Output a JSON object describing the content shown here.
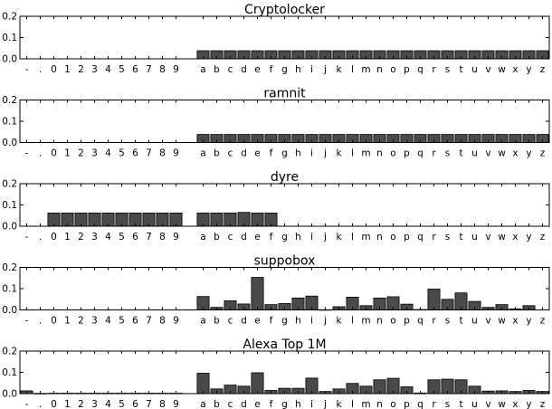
{
  "chart_data": {
    "type": "bar",
    "categories": [
      "-",
      ".",
      "0",
      "1",
      "2",
      "3",
      "4",
      "5",
      "6",
      "7",
      "8",
      "9",
      "",
      "a",
      "b",
      "c",
      "d",
      "e",
      "f",
      "g",
      "h",
      "i",
      "j",
      "k",
      "l",
      "m",
      "n",
      "o",
      "p",
      "q",
      "r",
      "s",
      "t",
      "u",
      "v",
      "w",
      "x",
      "y",
      "z"
    ],
    "ylim": [
      0,
      0.2
    ],
    "yticks": [
      "0.0",
      "0.1",
      "0.2"
    ],
    "bar_color": "#4a4a4a",
    "panels": [
      {
        "title": "Cryptolocker",
        "values": [
          0,
          0,
          0,
          0,
          0,
          0,
          0,
          0,
          0,
          0,
          0,
          0,
          0,
          0.038,
          0.038,
          0.038,
          0.038,
          0.038,
          0.038,
          0.038,
          0.038,
          0.038,
          0.038,
          0.038,
          0.038,
          0.038,
          0.038,
          0.038,
          0.038,
          0.038,
          0.038,
          0.038,
          0.038,
          0.038,
          0.038,
          0.038,
          0.038,
          0.038,
          0.038
        ]
      },
      {
        "title": "ramnit",
        "values": [
          0,
          0,
          0,
          0,
          0,
          0,
          0,
          0,
          0,
          0,
          0,
          0,
          0,
          0.038,
          0.038,
          0.038,
          0.038,
          0.038,
          0.038,
          0.038,
          0.038,
          0.038,
          0.038,
          0.038,
          0.038,
          0.038,
          0.038,
          0.038,
          0.038,
          0.038,
          0.038,
          0.038,
          0.038,
          0.038,
          0.038,
          0.038,
          0.038,
          0.038,
          0.038
        ]
      },
      {
        "title": "dyre",
        "values": [
          0,
          0,
          0.062,
          0.062,
          0.062,
          0.062,
          0.062,
          0.062,
          0.062,
          0.062,
          0.062,
          0.062,
          0,
          0.062,
          0.062,
          0.062,
          0.065,
          0.062,
          0.062,
          0,
          0,
          0,
          0,
          0,
          0,
          0,
          0,
          0,
          0,
          0,
          0,
          0,
          0,
          0,
          0,
          0,
          0,
          0,
          0
        ]
      },
      {
        "title": "suppobox",
        "values": [
          0,
          0,
          0,
          0,
          0,
          0,
          0,
          0,
          0,
          0,
          0,
          0,
          0,
          0.063,
          0.012,
          0.043,
          0.028,
          0.153,
          0.025,
          0.03,
          0.056,
          0.065,
          0.001,
          0.015,
          0.06,
          0.02,
          0.056,
          0.062,
          0.027,
          0.002,
          0.098,
          0.05,
          0.08,
          0.04,
          0.012,
          0.025,
          0.005,
          0.02,
          0
        ]
      },
      {
        "title": "Alexa Top 1M",
        "values": [
          0.013,
          0.001,
          0.002,
          0.002,
          0.002,
          0.002,
          0.002,
          0.002,
          0.002,
          0.002,
          0.002,
          0.002,
          0,
          0.096,
          0.022,
          0.04,
          0.035,
          0.098,
          0.015,
          0.025,
          0.025,
          0.073,
          0.01,
          0.022,
          0.048,
          0.035,
          0.065,
          0.072,
          0.032,
          0.003,
          0.065,
          0.068,
          0.065,
          0.035,
          0.012,
          0.013,
          0.01,
          0.015,
          0.01
        ]
      }
    ]
  }
}
